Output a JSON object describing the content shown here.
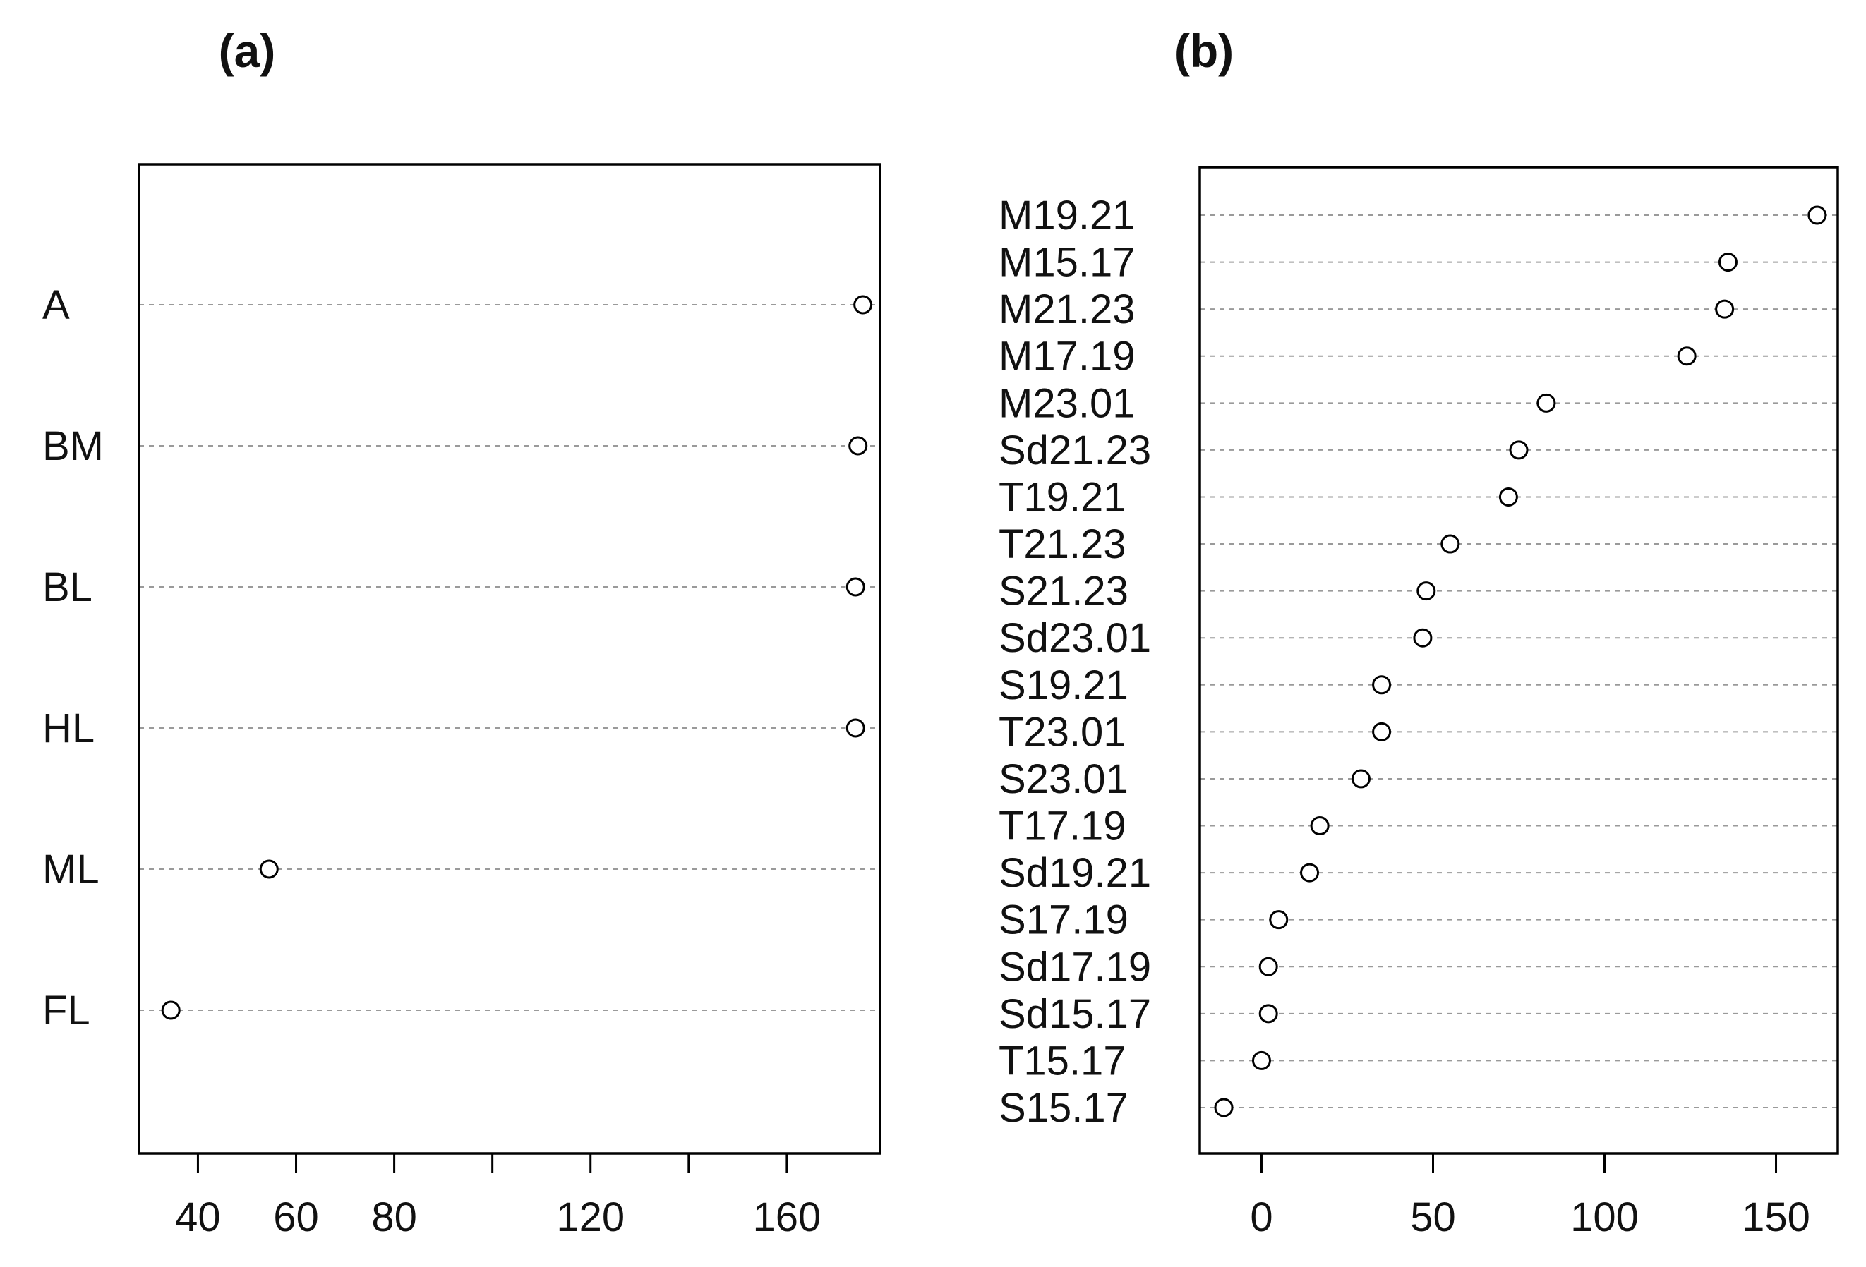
{
  "chart_data": [
    {
      "type": "scatter",
      "panel_label": "(a)",
      "categories": [
        "A",
        "BM",
        "BL",
        "HL",
        "ML",
        "FL"
      ],
      "values": [
        175.5,
        174.5,
        174,
        174,
        54.5,
        34.5
      ],
      "xlim": [
        28,
        179
      ],
      "xticks": [
        40,
        60,
        80,
        100,
        120,
        140,
        160
      ],
      "xtick_labels": [
        "40",
        "60",
        "80",
        "",
        "120",
        "",
        "160"
      ],
      "grid": "dashed horizontal",
      "title": "",
      "xlabel": "",
      "ylabel": ""
    },
    {
      "type": "scatter",
      "panel_label": "(b)",
      "categories": [
        "M19.21",
        "M15.17",
        "M21.23",
        "M17.19",
        "M23.01",
        "Sd21.23",
        "T19.21",
        "T21.23",
        "S21.23",
        "Sd23.01",
        "S19.21",
        "T23.01",
        "S23.01",
        "T17.19",
        "Sd19.21",
        "S17.19",
        "Sd17.19",
        "Sd15.17",
        "T15.17",
        "S15.17"
      ],
      "values": [
        162,
        136,
        135,
        124,
        83,
        75,
        72,
        55,
        48,
        47,
        35,
        35,
        29,
        17,
        14,
        5,
        2,
        2,
        0,
        -11
      ],
      "xlim": [
        -18,
        168
      ],
      "xticks": [
        0,
        50,
        100,
        150
      ],
      "xtick_labels": [
        "0",
        "50",
        "100",
        "150"
      ],
      "grid": "dashed horizontal",
      "title": "",
      "xlabel": "",
      "ylabel": ""
    }
  ]
}
